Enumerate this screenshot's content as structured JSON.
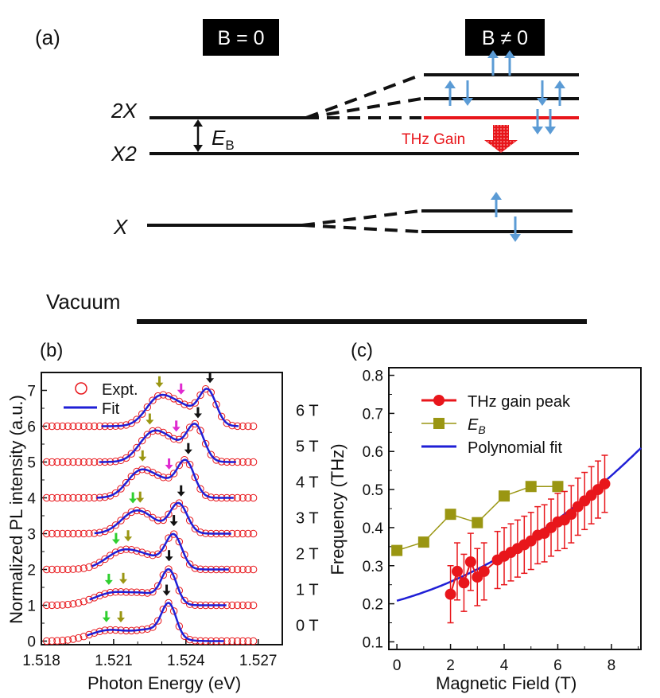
{
  "colors": {
    "black": "#111111",
    "red_level": "#e8161b",
    "spin_arrow": "#5b9bd5",
    "gain_arrow": "#e8161b",
    "fit_blue": "#1f1fd6",
    "expt_red": "#e8161b",
    "olive": "#9a9612",
    "green_arrow": "#2fcf2f",
    "magenta_arrow": "#e02ad0",
    "black_arrow": "#111111"
  },
  "panel_a": {
    "label": "(a)",
    "box_left": "B = 0",
    "box_right": "B ≠ 0",
    "level_2x": "2X",
    "level_x2": "X2",
    "level_x": "X",
    "eb_label": "EB",
    "thz_gain": "THz Gain",
    "vacuum": "Vacuum"
  },
  "chart_data": [
    {
      "type": "line",
      "panel": "(b)",
      "xlabel": "Photon Energy (eV)",
      "ylabel": "Normalized PL intensity (a.u.)",
      "xlim": [
        1.518,
        1.528
      ],
      "ylim": [
        -0.1,
        7.5
      ],
      "xticks": [
        "1.518",
        "1.521",
        "1.524",
        "1.527"
      ],
      "yticks": [
        "0",
        "1",
        "2",
        "3",
        "4",
        "5",
        "6",
        "7"
      ],
      "legend": [
        "Expt.",
        "Fit"
      ],
      "series": [
        {
          "field": "0 T",
          "offset": 0,
          "p1_e": 1.5208,
          "p1_a": 0.3,
          "p1_w": 0.0008,
          "p2_e": 1.5226,
          "p2_a": 0.3,
          "p2_w": 0.0007,
          "p3_e": 1.5233,
          "p3_a": 0.88,
          "p3_w": 0.0003,
          "arrows": [
            {
              "e": 1.5207,
              "c": "green"
            },
            {
              "e": 1.5213,
              "c": "olive"
            },
            {
              "e": 1.5232,
              "c": "black"
            }
          ]
        },
        {
          "field": "1 T",
          "offset": 1,
          "p1_e": 1.521,
          "p1_a": 0.35,
          "p1_w": 0.0008,
          "p2_e": 1.5224,
          "p2_a": 0.25,
          "p2_w": 0.0006,
          "p3_e": 1.5233,
          "p3_a": 0.92,
          "p3_w": 0.00032,
          "arrows": [
            {
              "e": 1.5208,
              "c": "green"
            },
            {
              "e": 1.5214,
              "c": "olive"
            },
            {
              "e": 1.5233,
              "c": "black"
            }
          ]
        },
        {
          "field": "2 T",
          "offset": 2,
          "p1_e": 1.5214,
          "p1_a": 0.52,
          "p1_w": 0.0007,
          "p2_e": 1.5226,
          "p2_a": 0.25,
          "p2_w": 0.0006,
          "p3_e": 1.5235,
          "p3_a": 0.9,
          "p3_w": 0.00034,
          "arrows": [
            {
              "e": 1.5211,
              "c": "green"
            },
            {
              "e": 1.5216,
              "c": "olive"
            },
            {
              "e": 1.5235,
              "c": "black"
            }
          ]
        },
        {
          "field": "3 T",
          "offset": 3,
          "p1_e": 1.5219,
          "p1_a": 0.6,
          "p1_w": 0.0006,
          "p2_e": 1.5227,
          "p2_a": 0.15,
          "p2_w": 0.0005,
          "p3_e": 1.5237,
          "p3_a": 0.83,
          "p3_w": 0.00036,
          "arrows": [
            {
              "e": 1.5218,
              "c": "green"
            },
            {
              "e": 1.5221,
              "c": "olive"
            },
            {
              "e": 1.5238,
              "c": "black"
            }
          ]
        },
        {
          "field": "4 T",
          "offset": 4,
          "p1_e": 1.5221,
          "p1_a": 0.73,
          "p1_w": 0.00055,
          "p2_e": 1.5231,
          "p2_a": 0.38,
          "p2_w": 0.0005,
          "p3_e": 1.524,
          "p3_a": 0.98,
          "p3_w": 0.00036,
          "arrows": [
            {
              "e": 1.5222,
              "c": "olive"
            },
            {
              "e": 1.5233,
              "c": "magenta"
            },
            {
              "e": 1.5241,
              "c": "black"
            }
          ]
        },
        {
          "field": "5 T",
          "offset": 5,
          "p1_e": 1.5226,
          "p1_a": 0.78,
          "p1_w": 0.00055,
          "p2_e": 1.5235,
          "p2_a": 0.4,
          "p2_w": 0.0005,
          "p3_e": 1.5244,
          "p3_a": 0.98,
          "p3_w": 0.00036,
          "arrows": [
            {
              "e": 1.5225,
              "c": "olive"
            },
            {
              "e": 1.5236,
              "c": "magenta"
            },
            {
              "e": 1.5245,
              "c": "black"
            }
          ]
        },
        {
          "field": "6 T",
          "offset": 6,
          "p1_e": 1.5229,
          "p1_a": 0.8,
          "p1_w": 0.00055,
          "p2_e": 1.5239,
          "p2_a": 0.45,
          "p2_w": 0.0005,
          "p3_e": 1.5249,
          "p3_a": 0.98,
          "p3_w": 0.00036,
          "arrows": [
            {
              "e": 1.5229,
              "c": "olive"
            },
            {
              "e": 1.5238,
              "c": "magenta"
            },
            {
              "e": 1.525,
              "c": "black"
            }
          ]
        }
      ]
    },
    {
      "type": "scatter",
      "panel": "(c)",
      "xlabel": "Magnetic Field (T)",
      "ylabel": "Frequency (THz)",
      "xlim": [
        -0.3,
        9.1
      ],
      "ylim": [
        0.08,
        0.82
      ],
      "xticks": [
        "0",
        "2",
        "4",
        "6",
        "8"
      ],
      "yticks": [
        "0.1",
        "0.2",
        "0.3",
        "0.4",
        "0.5",
        "0.6",
        "0.7",
        "0.8"
      ],
      "legend": [
        "THz gain peak",
        "EB",
        "Polynomial fit"
      ],
      "series": [
        {
          "name": "THz gain peak",
          "x": [
            2.0,
            2.25,
            2.5,
            2.75,
            3.0,
            3.25,
            3.75,
            4.0,
            4.25,
            4.5,
            4.75,
            5.0,
            5.25,
            5.5,
            5.75,
            6.0,
            6.25,
            6.5,
            6.75,
            7.0,
            7.25,
            7.5,
            7.75
          ],
          "y": [
            0.225,
            0.285,
            0.255,
            0.31,
            0.27,
            0.285,
            0.315,
            0.325,
            0.335,
            0.345,
            0.355,
            0.365,
            0.38,
            0.385,
            0.4,
            0.415,
            0.42,
            0.435,
            0.455,
            0.47,
            0.485,
            0.5,
            0.515
          ],
          "err": 0.075
        },
        {
          "name": "EB",
          "x": [
            0,
            1,
            2,
            3,
            4,
            5,
            6
          ],
          "y": [
            0.34,
            0.362,
            0.435,
            0.413,
            0.483,
            0.508,
            0.508
          ]
        },
        {
          "name": "Polynomial fit",
          "coeffs": [
            0.208,
            0.0195,
            0.0027
          ]
        }
      ]
    }
  ]
}
